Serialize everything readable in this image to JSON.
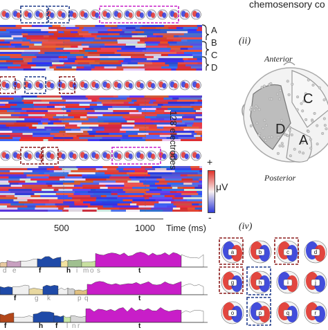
{
  "header": {
    "title_fragment": "chemosensory co"
  },
  "panel_ii": {
    "label": "(ii)",
    "anterior": "Anterior",
    "posterior": "Posterior",
    "regions": [
      "C",
      "D",
      "A"
    ]
  },
  "heatmap": {
    "cluster_labels": [
      "A",
      "B",
      "C",
      "D"
    ],
    "y_label": "128 electrodes",
    "scale_plus": "+",
    "scale_minus": "-",
    "unit": "μV",
    "x_ticks": [
      "500",
      "1000"
    ],
    "x_axis_label": "Time (ms)"
  },
  "bottom_tracks": {
    "row1_letters": [
      "d",
      "e",
      "f",
      "h",
      "i",
      "m",
      "o",
      "s",
      "t"
    ],
    "row2_letters": [
      "f",
      "g",
      "k",
      "p",
      "q",
      "t"
    ],
    "row3_letters": [
      "f",
      "h",
      "f",
      "l",
      "n",
      "r",
      "t"
    ]
  },
  "panel_iv": {
    "label": "(iv)",
    "maps": [
      "a",
      "b",
      "c",
      "d",
      "g",
      "h",
      "i",
      "j",
      "o",
      "p",
      "q",
      "r"
    ]
  },
  "colors": {
    "red": "#e0332b",
    "blue": "#2f3bd8",
    "magenta": "#c81ec8",
    "box_red": "#8b1a1a",
    "box_blue": "#1e3a8a"
  }
}
